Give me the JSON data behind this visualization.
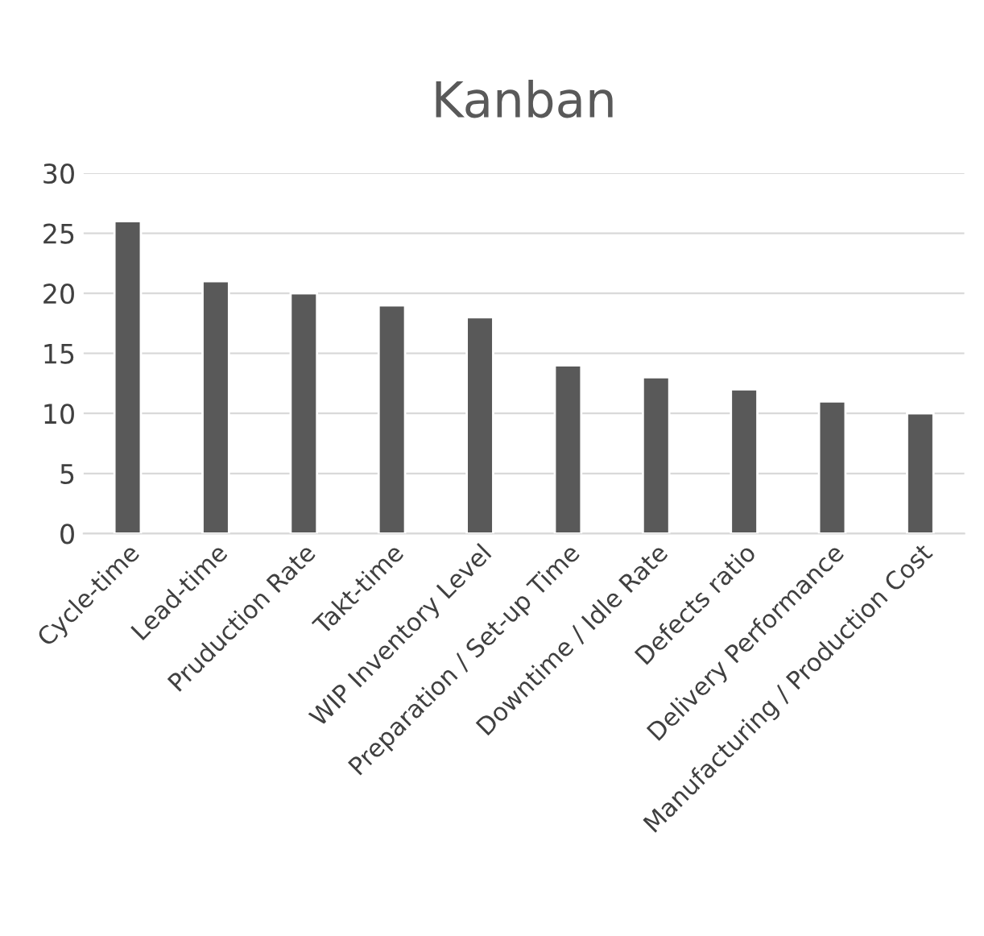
{
  "chart_data": {
    "type": "bar",
    "title": "Kanban",
    "categories": [
      "Cycle-time",
      "Lead-time",
      "Pruduction Rate",
      "Takt-time",
      "WIP Inventory Level",
      "Preparation / Set-up Time",
      "Downtime / Idle Rate",
      "Defects ratio",
      "Delivery Performance",
      "Manufacturing / Production Cost"
    ],
    "values": [
      26,
      21,
      20,
      19,
      18,
      14,
      13,
      12,
      11,
      10
    ],
    "color": "#595959",
    "ylim": [
      0,
      30
    ],
    "yticks": [
      0,
      5,
      10,
      15,
      20,
      25,
      30
    ],
    "grid": "y"
  }
}
